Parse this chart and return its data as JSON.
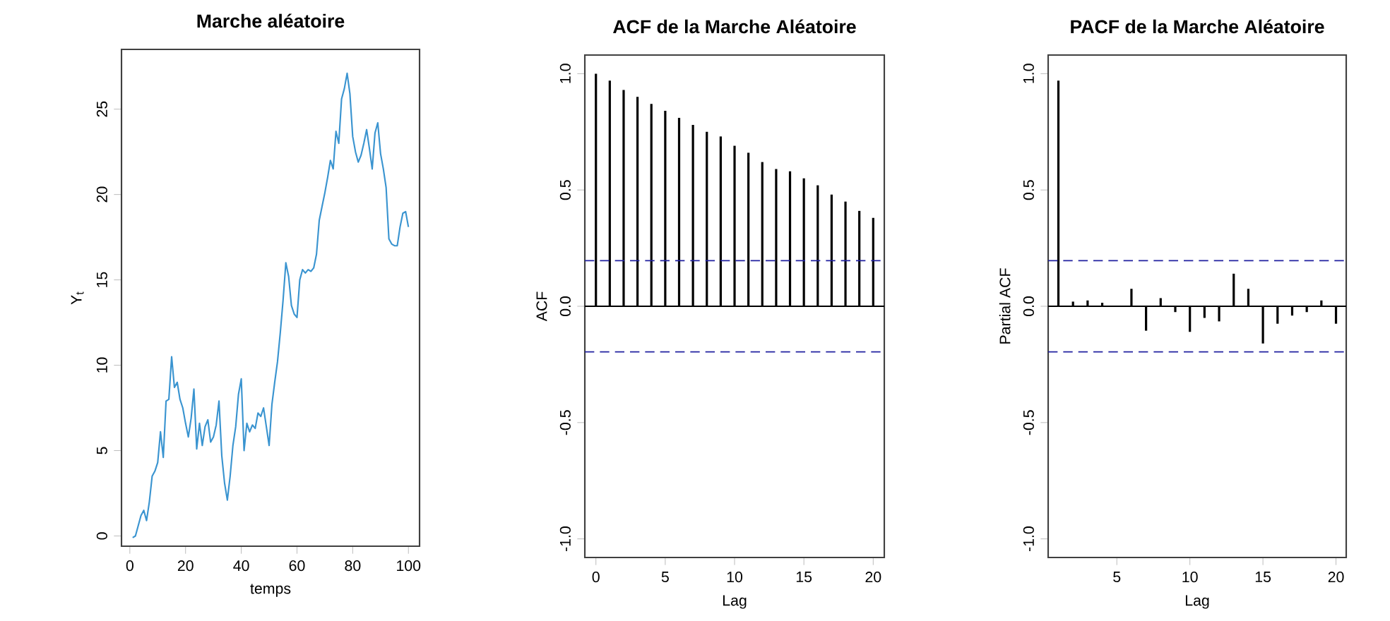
{
  "chart_data": [
    {
      "type": "line",
      "title": "Marche aléatoire",
      "xlabel": "temps",
      "ylabel": "Y$_{t}$",
      "color": "#3a94d0",
      "x": [
        1,
        2,
        3,
        4,
        5,
        6,
        7,
        8,
        9,
        10,
        11,
        12,
        13,
        14,
        15,
        16,
        17,
        18,
        19,
        20,
        21,
        22,
        23,
        24,
        25,
        26,
        27,
        28,
        29,
        30,
        31,
        32,
        33,
        34,
        35,
        36,
        37,
        38,
        39,
        40,
        41,
        42,
        43,
        44,
        45,
        46,
        47,
        48,
        49,
        50,
        51,
        52,
        53,
        54,
        55,
        56,
        57,
        58,
        59,
        60,
        61,
        62,
        63,
        64,
        65,
        66,
        67,
        68,
        69,
        70,
        71,
        72,
        73,
        74,
        75,
        76,
        77,
        78,
        79,
        80,
        81,
        82,
        83,
        84,
        85,
        86,
        87,
        88,
        89,
        90,
        91,
        92,
        93,
        94,
        95,
        96,
        97,
        98,
        99,
        100
      ],
      "values": [
        -0.1,
        0.0,
        0.6,
        1.2,
        1.5,
        0.9,
        2.0,
        3.5,
        3.8,
        4.3,
        6.1,
        4.6,
        7.9,
        8.0,
        10.5,
        8.7,
        9.0,
        8.0,
        7.5,
        6.6,
        5.8,
        6.9,
        8.6,
        5.1,
        6.6,
        5.3,
        6.4,
        6.8,
        5.5,
        5.8,
        6.5,
        7.9,
        4.7,
        3.1,
        2.1,
        3.5,
        5.3,
        6.4,
        8.3,
        9.2,
        5.0,
        6.6,
        6.1,
        6.5,
        6.3,
        7.2,
        7.0,
        7.5,
        6.4,
        5.3,
        7.7,
        9.0,
        10.2,
        11.9,
        13.8,
        16.0,
        15.2,
        13.5,
        13.0,
        12.8,
        15.0,
        15.6,
        15.4,
        15.6,
        15.5,
        15.7,
        16.5,
        18.5,
        19.3,
        20.1,
        21.0,
        22.0,
        21.5,
        23.7,
        23.0,
        25.6,
        26.2,
        27.1,
        25.9,
        23.4,
        22.5,
        21.9,
        22.3,
        23.0,
        23.8,
        22.7,
        21.5,
        23.6,
        24.2,
        22.4,
        21.5,
        20.4,
        17.4,
        17.1,
        17.0,
        17.0,
        18.1,
        18.9,
        19.0,
        18.1
      ],
      "xlim": [
        -3,
        104
      ],
      "ylim": [
        -0.6,
        28.5
      ],
      "xticks": [
        0,
        20,
        40,
        60,
        80,
        100
      ],
      "yticks": [
        0,
        5,
        10,
        15,
        20,
        25
      ]
    },
    {
      "type": "bar",
      "title": "ACF de la Marche Aléatoire",
      "xlabel": "Lag",
      "ylabel": "ACF",
      "color": "#000000",
      "x": [
        0,
        1,
        2,
        3,
        4,
        5,
        6,
        7,
        8,
        9,
        10,
        11,
        12,
        13,
        14,
        15,
        16,
        17,
        18,
        19,
        20
      ],
      "values": [
        1.0,
        0.97,
        0.93,
        0.9,
        0.87,
        0.84,
        0.81,
        0.78,
        0.75,
        0.73,
        0.69,
        0.66,
        0.62,
        0.59,
        0.58,
        0.55,
        0.52,
        0.48,
        0.45,
        0.41,
        0.38
      ],
      "xlim": [
        -0.8,
        20.8
      ],
      "ylim": [
        -1.08,
        1.08
      ],
      "xticks": [
        0,
        5,
        10,
        15,
        20
      ],
      "yticks": [
        {
          "value": -1,
          "label": "-1.0"
        },
        {
          "value": -0.5,
          "label": "-0.5"
        },
        {
          "value": 0,
          "label": "0.0"
        },
        {
          "value": 0.5,
          "label": "0.5"
        },
        {
          "value": 1,
          "label": "1.0"
        }
      ],
      "ref_lines": [
        {
          "axis": "y",
          "value": 0,
          "color": "#000000",
          "line_style": "solid"
        },
        {
          "axis": "y",
          "value": 0.196,
          "color": "#2020a0",
          "line_style": "dashed"
        },
        {
          "axis": "y",
          "value": -0.196,
          "color": "#2020a0",
          "line_style": "dashed"
        }
      ]
    },
    {
      "type": "bar",
      "title": "PACF de la Marche Aléatoire",
      "xlabel": "Lag",
      "ylabel": "Partial ACF",
      "color": "#000000",
      "x": [
        1,
        2,
        3,
        4,
        5,
        6,
        7,
        8,
        9,
        10,
        11,
        12,
        13,
        14,
        15,
        16,
        17,
        18,
        19,
        20
      ],
      "values": [
        0.97,
        0.02,
        0.025,
        0.015,
        null,
        0.075,
        -0.105,
        0.035,
        -0.025,
        -0.11,
        -0.05,
        -0.065,
        0.14,
        0.075,
        -0.16,
        -0.075,
        -0.04,
        -0.025,
        0.025,
        -0.075
      ],
      "xlim": [
        0.3,
        20.7
      ],
      "ylim": [
        -1.08,
        1.08
      ],
      "xticks": [
        5,
        10,
        15,
        20
      ],
      "yticks": [
        {
          "value": -1,
          "label": "-1.0"
        },
        {
          "value": -0.5,
          "label": "-0.5"
        },
        {
          "value": 0,
          "label": "0.0"
        },
        {
          "value": 0.5,
          "label": "0.5"
        },
        {
          "value": 1,
          "label": "1.0"
        }
      ],
      "ref_lines": [
        {
          "axis": "y",
          "value": 0,
          "color": "#000000",
          "line_style": "solid"
        },
        {
          "axis": "y",
          "value": 0.196,
          "color": "#2020a0",
          "line_style": "dashed"
        },
        {
          "axis": "y",
          "value": -0.196,
          "color": "#2020a0",
          "line_style": "dashed"
        }
      ]
    }
  ]
}
